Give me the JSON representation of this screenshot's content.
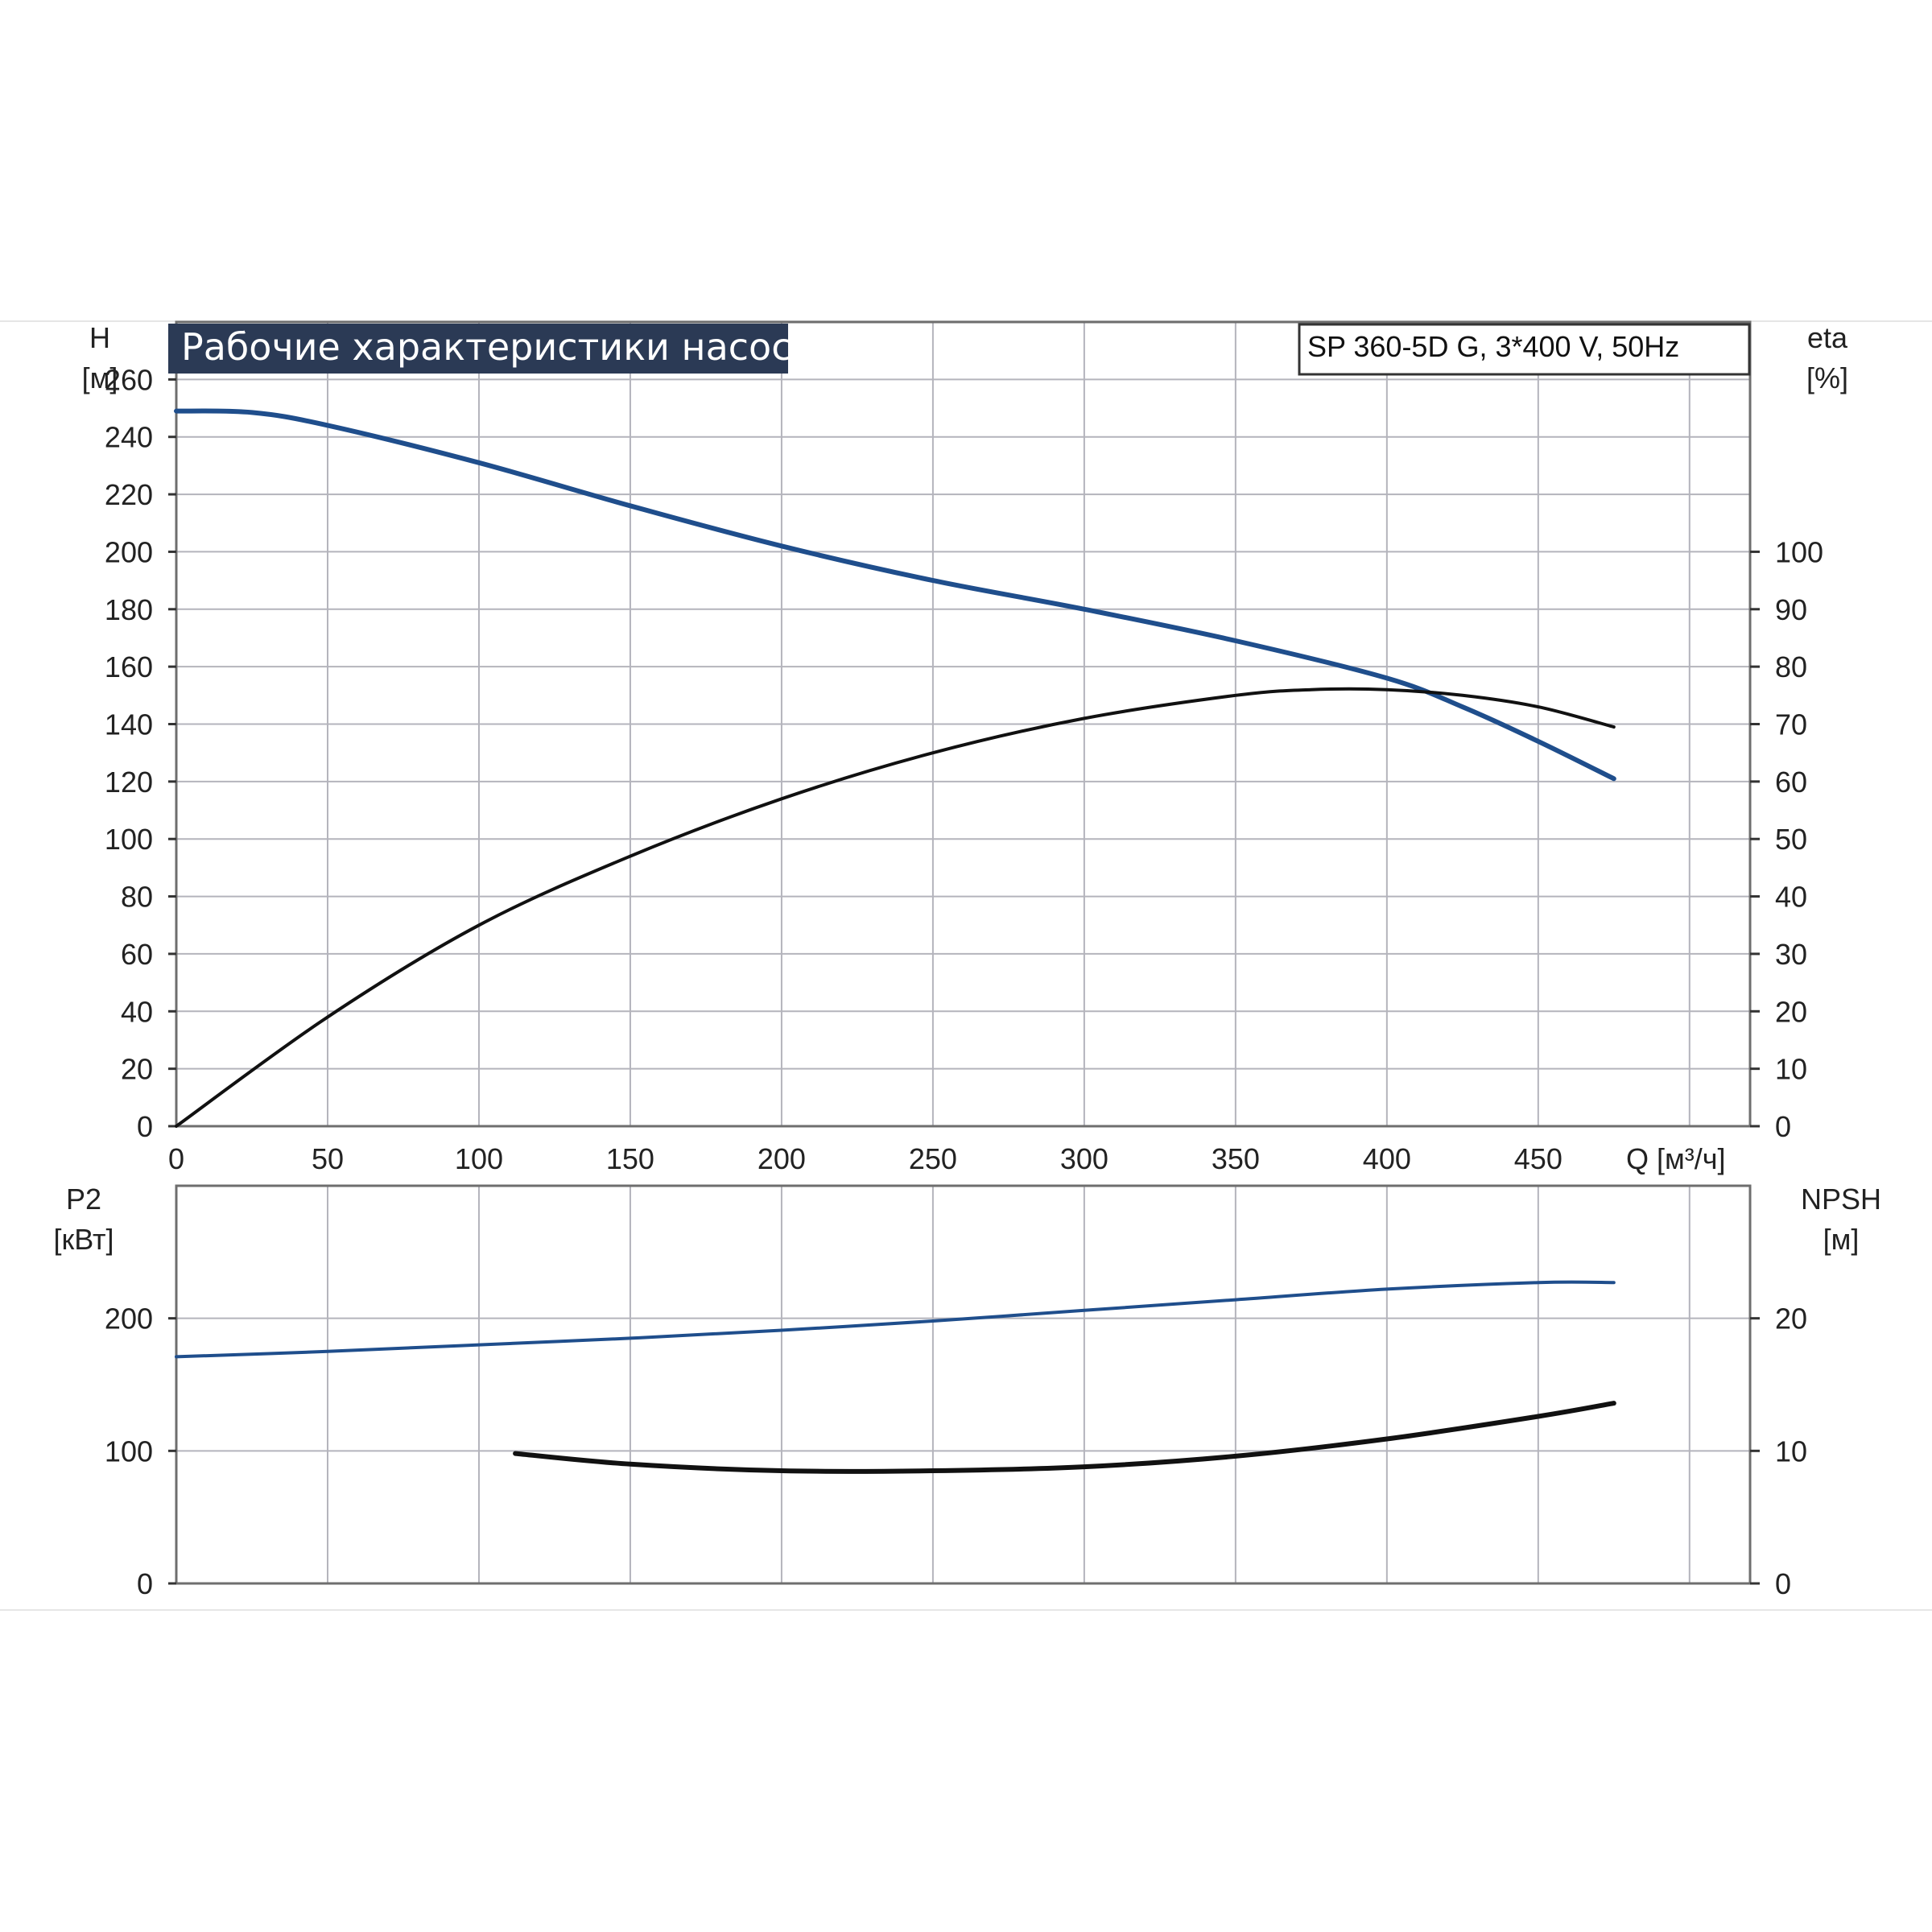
{
  "title": "Рабочие характеристики насоса",
  "model": "SP 360-5D G, 3*400 V, 50Hz",
  "colors": {
    "title_bg": "#2b3a55",
    "curve_blue": "#1f4e8c",
    "curve_black": "#111111",
    "grid": "#b4b4bc"
  },
  "chart_data": [
    {
      "type": "line",
      "panel": "top",
      "xlabel": "Q [м³/ч]",
      "xlim": [
        0,
        520
      ],
      "x_ticks": [
        "0",
        "50",
        "100",
        "150",
        "200",
        "250",
        "300",
        "350",
        "400",
        "450"
      ],
      "left_axis": {
        "label_line1": "H",
        "label_line2": "[м]",
        "ylim": [
          0,
          280
        ],
        "ticks": [
          "0",
          "20",
          "40",
          "60",
          "80",
          "100",
          "120",
          "140",
          "160",
          "180",
          "200",
          "220",
          "240",
          "260"
        ]
      },
      "right_axis": {
        "label_line1": "eta",
        "label_line2": "[%]",
        "ylim": [
          0,
          140
        ],
        "ticks": [
          "0",
          "10",
          "20",
          "30",
          "40",
          "50",
          "60",
          "70",
          "80",
          "90",
          "100"
        ]
      },
      "grid": true,
      "series": [
        {
          "axis": "left",
          "color": "#1f4e8c",
          "x": [
            0,
            25,
            50,
            100,
            150,
            200,
            250,
            300,
            350,
            400,
            425,
            450,
            475
          ],
          "y": [
            249,
            248.5,
            244,
            231,
            216,
            202,
            190,
            180,
            169,
            156,
            146,
            134,
            121
          ]
        },
        {
          "axis": "right",
          "color": "#111111",
          "x": [
            0,
            50,
            100,
            150,
            200,
            250,
            300,
            350,
            375,
            400,
            425,
            450,
            475
          ],
          "y": [
            0,
            19,
            35,
            47,
            57,
            65,
            71,
            75,
            76,
            76,
            75,
            73,
            69.5
          ]
        }
      ]
    },
    {
      "type": "line",
      "panel": "bottom",
      "xlim": [
        0,
        520
      ],
      "left_axis": {
        "label_line1": "P2",
        "label_line2": "[кВт]",
        "ylim": [
          0,
          300
        ],
        "ticks": [
          "0",
          "100",
          "200"
        ]
      },
      "right_axis": {
        "label_line1": "NPSH",
        "label_line2": "[м]",
        "ylim": [
          0,
          30
        ],
        "ticks": [
          "0",
          "10",
          "20"
        ]
      },
      "grid": true,
      "series": [
        {
          "axis": "left",
          "color": "#1f4e8c",
          "x": [
            0,
            50,
            100,
            150,
            200,
            250,
            300,
            350,
            400,
            450,
            475
          ],
          "y": [
            171,
            175,
            180,
            185,
            191,
            198,
            206,
            214,
            222,
            227,
            227
          ]
        },
        {
          "axis": "right",
          "color": "#111111",
          "x": [
            112,
            150,
            200,
            250,
            300,
            350,
            400,
            450,
            475
          ],
          "y": [
            9.8,
            9.0,
            8.5,
            8.5,
            8.8,
            9.6,
            10.9,
            12.6,
            13.6
          ]
        }
      ]
    }
  ]
}
